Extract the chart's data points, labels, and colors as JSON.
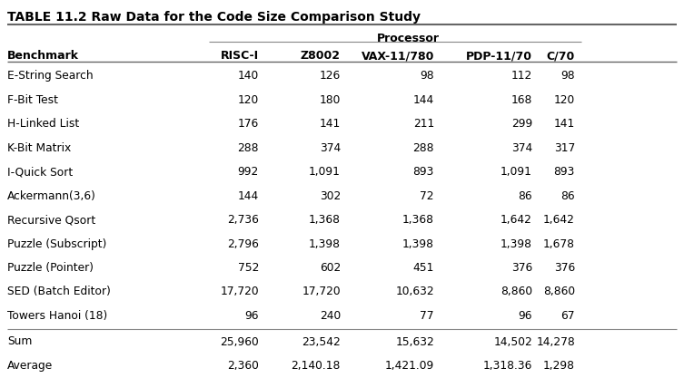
{
  "title": "TABLE 11.2 Raw Data for the Code Size Comparison Study",
  "group_header": "Processor",
  "col_headers": [
    "Benchmark",
    "RISC-I",
    "Z8002",
    "VAX-11/780",
    "PDP-11/70",
    "C/70"
  ],
  "rows": [
    [
      "E-String Search",
      "140",
      "126",
      "98",
      "112",
      "98"
    ],
    [
      "F-Bit Test",
      "120",
      "180",
      "144",
      "168",
      "120"
    ],
    [
      "H-Linked List",
      "176",
      "141",
      "211",
      "299",
      "141"
    ],
    [
      "K-Bit Matrix",
      "288",
      "374",
      "288",
      "374",
      "317"
    ],
    [
      "I-Quick Sort",
      "992",
      "1,091",
      "893",
      "1,091",
      "893"
    ],
    [
      "Ackermann(3,6)",
      "144",
      "302",
      "72",
      "86",
      "86"
    ],
    [
      "Recursive Qsort",
      "2,736",
      "1,368",
      "1,368",
      "1,642",
      "1,642"
    ],
    [
      "Puzzle (Subscript)",
      "2,796",
      "1,398",
      "1,398",
      "1,398",
      "1,678"
    ],
    [
      "Puzzle (Pointer)",
      "752",
      "602",
      "451",
      "376",
      "376"
    ],
    [
      "SED (Batch Editor)",
      "17,720",
      "17,720",
      "10,632",
      "8,860",
      "8,860"
    ],
    [
      "Towers Hanoi (18)",
      "96",
      "240",
      "77",
      "96",
      "67"
    ]
  ],
  "summary_rows": [
    [
      "Sum",
      "25,960",
      "23,542",
      "15,632",
      "14,502",
      "14,278"
    ],
    [
      "Average",
      "2,360",
      "2,140.18",
      "1,421.09",
      "1,318.36",
      "1,298"
    ]
  ],
  "col_alignments": [
    "left",
    "right",
    "right",
    "right",
    "right",
    "right"
  ],
  "bg_color": "#ffffff",
  "text_color": "#000000",
  "title_fontsize": 10.0,
  "header_fontsize": 9.0,
  "data_fontsize": 8.8
}
